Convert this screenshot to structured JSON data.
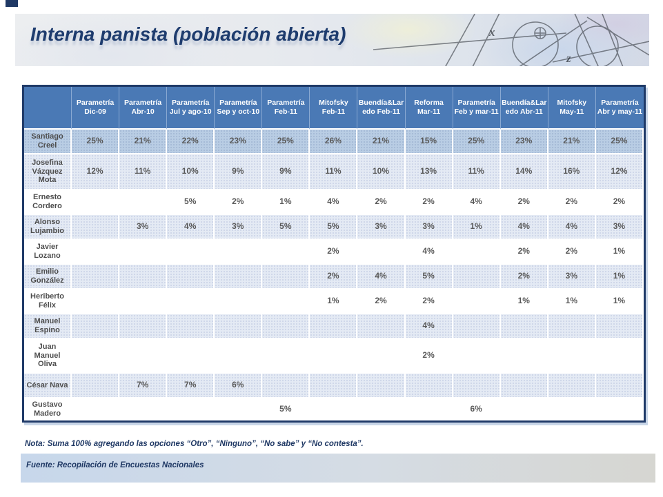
{
  "slide": {
    "title": "Interna panista (población abierta)",
    "note": "Nota: Suma 100% agregando las opciones “Otro”, “Ninguno”, “No sabe” y “No contesta”.",
    "source": "Fuente: Recopilación de Encuestas Nacionales"
  },
  "colors": {
    "header_blue": "#4a79b5",
    "band_medium": "#b9cde4",
    "band_light": "#e4eaf4",
    "table_border_navy": "#1f3a68",
    "title_navy": "#1e3c6e"
  },
  "chart_data": {
    "type": "table",
    "title": "Interna panista (población abierta)",
    "columns": [
      "Parametría Dic-09",
      "Parametría Abr-10",
      "Parametría Jul y ago-10",
      "Parametría Sep y oct-10",
      "Parametría Feb-11",
      "Mitofsky Feb-11",
      "Buendía&Laredo Feb-11",
      "Reforma Mar-11",
      "Parametría Feb y mar-11",
      "Buendía&Laredo Abr-11",
      "Mitofsky May-11",
      "Parametría Abr y may-11"
    ],
    "rows": [
      {
        "name": "Santiago Creel",
        "shade": "medium",
        "values": [
          "25%",
          "21%",
          "22%",
          "23%",
          "25%",
          "26%",
          "21%",
          "15%",
          "25%",
          "23%",
          "21%",
          "25%"
        ]
      },
      {
        "name": "Josefina Vázquez Mota",
        "shade": "light",
        "values": [
          "12%",
          "11%",
          "10%",
          "9%",
          "9%",
          "11%",
          "10%",
          "13%",
          "11%",
          "14%",
          "16%",
          "12%"
        ]
      },
      {
        "name": "Ernesto Cordero",
        "shade": "white",
        "values": [
          "",
          "",
          "5%",
          "2%",
          "1%",
          "4%",
          "2%",
          "2%",
          "4%",
          "2%",
          "2%",
          "2%"
        ]
      },
      {
        "name": "Alonso Lujambio",
        "shade": "light",
        "values": [
          "",
          "3%",
          "4%",
          "3%",
          "5%",
          "5%",
          "3%",
          "3%",
          "1%",
          "4%",
          "4%",
          "3%"
        ]
      },
      {
        "name": "Javier Lozano",
        "shade": "white",
        "values": [
          "",
          "",
          "",
          "",
          "",
          "2%",
          "",
          "4%",
          "",
          "2%",
          "2%",
          "1%"
        ]
      },
      {
        "name": "Emilio González",
        "shade": "light",
        "values": [
          "",
          "",
          "",
          "",
          "",
          "2%",
          "4%",
          "5%",
          "",
          "2%",
          "3%",
          "1%"
        ]
      },
      {
        "name": "Heriberto Félix",
        "shade": "white",
        "values": [
          "",
          "",
          "",
          "",
          "",
          "1%",
          "2%",
          "2%",
          "",
          "1%",
          "1%",
          "1%"
        ]
      },
      {
        "name": "Manuel Espino",
        "shade": "light",
        "values": [
          "",
          "",
          "",
          "",
          "",
          "",
          "",
          "4%",
          "",
          "",
          "",
          ""
        ]
      },
      {
        "name": "Juan Manuel Oliva",
        "shade": "white",
        "values": [
          "",
          "",
          "",
          "",
          "",
          "",
          "",
          "2%",
          "",
          "",
          "",
          ""
        ]
      },
      {
        "name": "César Nava",
        "shade": "light",
        "values": [
          "",
          "7%",
          "7%",
          "6%",
          "",
          "",
          "",
          "",
          "",
          "",
          "",
          ""
        ]
      },
      {
        "name": "Gustavo Madero",
        "shade": "white",
        "values": [
          "",
          "",
          "",
          "",
          "5%",
          "",
          "",
          "",
          "6%",
          "",
          "",
          ""
        ]
      }
    ]
  }
}
